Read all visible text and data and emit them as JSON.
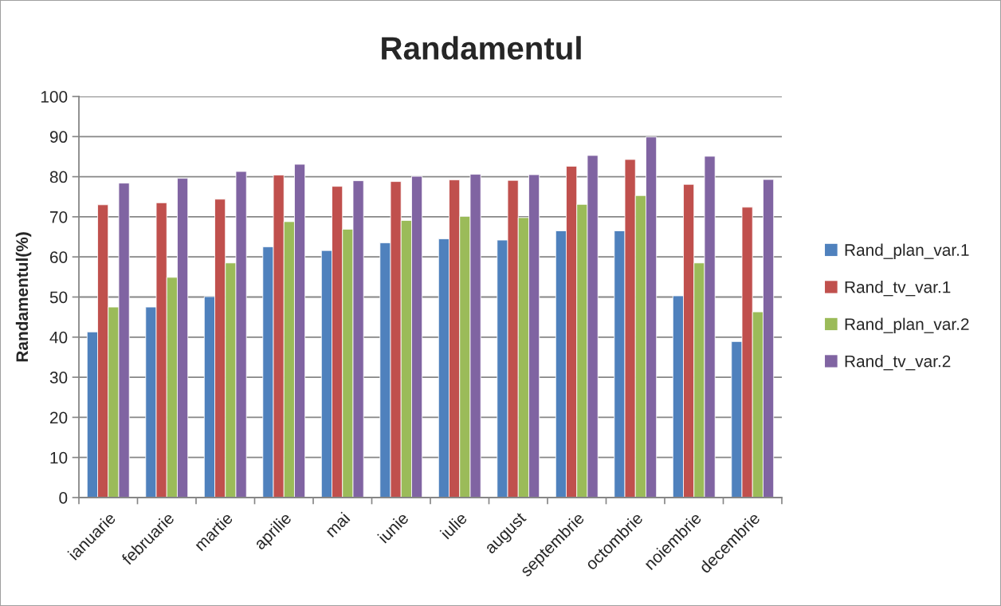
{
  "chart_data": {
    "type": "bar",
    "title": "Randamentul",
    "ylabel": "Randamentul(%)",
    "categories": [
      "ianuarie",
      "februarie",
      "martie",
      "aprilie",
      "mai",
      "iunie",
      "iulie",
      "august",
      "septembrie",
      "octombrie",
      "noiembrie",
      "decembrie"
    ],
    "series": [
      {
        "name": "Rand_plan_var.1",
        "color": "#4f81bd",
        "values": [
          41.3,
          47.5,
          50.1,
          62.5,
          61.6,
          63.5,
          64.5,
          64.2,
          66.5,
          66.5,
          50.3,
          38.9
        ]
      },
      {
        "name": "Rand_tv_var.1",
        "color": "#c0504d",
        "values": [
          73.0,
          73.5,
          74.4,
          80.4,
          77.6,
          78.8,
          79.2,
          79.1,
          82.6,
          84.3,
          78.1,
          72.4
        ]
      },
      {
        "name": "Rand_plan_var.2",
        "color": "#9bbb59",
        "values": [
          47.5,
          54.9,
          58.5,
          68.8,
          66.9,
          69.1,
          70.1,
          69.8,
          73.1,
          75.3,
          58.5,
          46.3
        ]
      },
      {
        "name": "Rand_tv_var.2",
        "color": "#8064a2",
        "values": [
          78.4,
          79.6,
          81.3,
          83.1,
          79.0,
          80.1,
          80.6,
          80.5,
          85.3,
          89.9,
          85.1,
          79.3
        ]
      }
    ],
    "ylim": [
      0,
      100
    ],
    "yticks": [
      0,
      10,
      20,
      30,
      40,
      50,
      60,
      70,
      80,
      90,
      100
    ],
    "grid": "y",
    "legend": "right"
  }
}
